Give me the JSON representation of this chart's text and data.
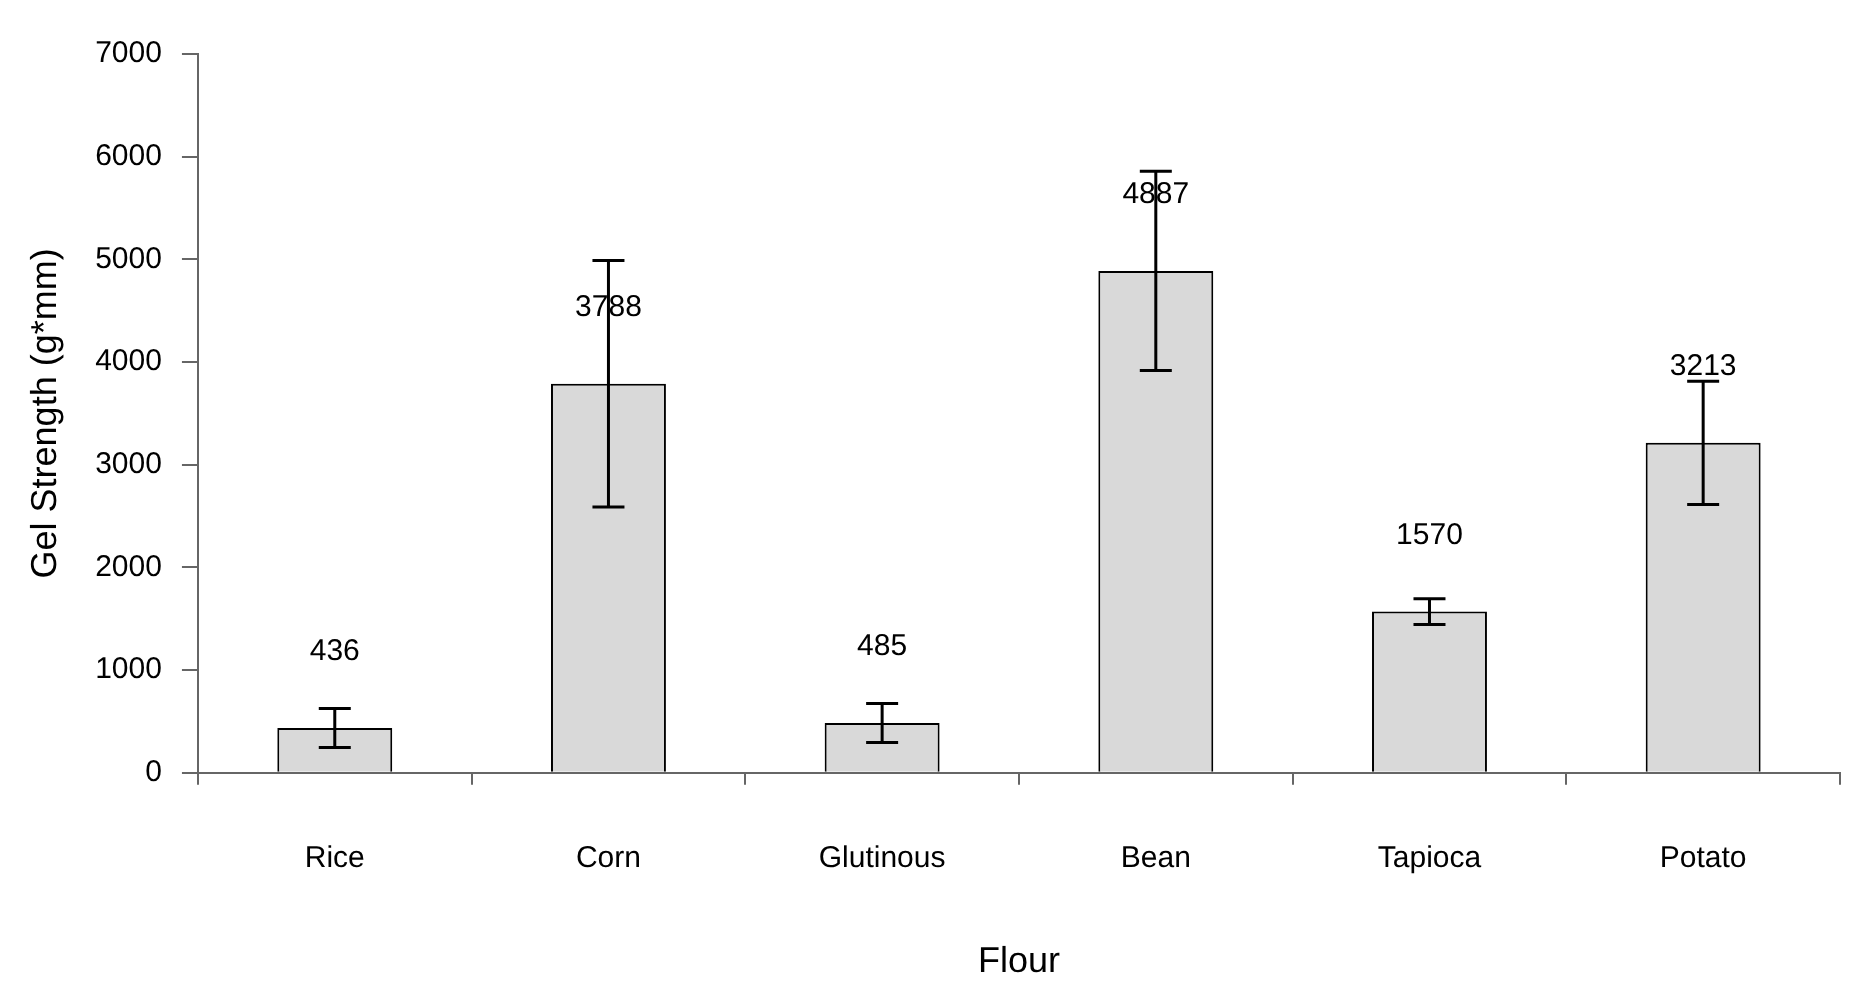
{
  "chart_data": {
    "type": "bar",
    "xlabel": "Flour",
    "ylabel": "Gel Strength (g*mm)",
    "categories": [
      "Rice",
      "Corn",
      "Glutinous",
      "Bean",
      "Tapioca",
      "Potato"
    ],
    "values": [
      436,
      3788,
      485,
      4887,
      1570,
      3213
    ],
    "errors": [
      190,
      1200,
      190,
      970,
      125,
      600
    ],
    "color": "#d9d9d9",
    "ylim": [
      0,
      7000
    ],
    "yticks": [
      0,
      1000,
      2000,
      3000,
      4000,
      5000,
      6000,
      7000
    ],
    "data_labels": true,
    "grid": false,
    "legend": false
  }
}
